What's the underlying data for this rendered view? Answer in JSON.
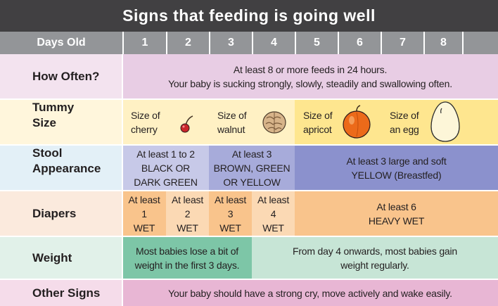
{
  "title": "Signs that feeding is going well",
  "header": {
    "label": "Days Old",
    "days": [
      "1",
      "2",
      "3",
      "4",
      "5",
      "6",
      "7",
      "8"
    ]
  },
  "rows": {
    "how_often": {
      "label": "How Often?",
      "line1": "At least 8 or more feeds in 24 hours.",
      "line2": "Your baby is sucking strongly, slowly, steadily and swallowing often."
    },
    "tummy": {
      "label1": "Tummy",
      "label2": "Size",
      "items": [
        {
          "l1": "Size of",
          "l2": "cherry",
          "icon": "cherry-icon"
        },
        {
          "l1": "Size of",
          "l2": "walnut",
          "icon": "walnut-icon"
        },
        {
          "l1": "Size of",
          "l2": "apricot",
          "icon": "apricot-icon"
        },
        {
          "l1": "Size of",
          "l2": "an egg",
          "icon": "egg-icon"
        }
      ]
    },
    "stool": {
      "label1": "Stool",
      "label2": "Appearance",
      "c1": [
        "At least 1 to 2",
        "BLACK OR",
        "DARK GREEN"
      ],
      "c2": [
        "At least 3",
        "BROWN, GREEN",
        "OR YELLOW"
      ],
      "c3": [
        "At least 3 large and soft",
        "YELLOW (Breastfed)"
      ]
    },
    "diapers": {
      "label": "Diapers",
      "days": [
        [
          "At least",
          "1",
          "WET"
        ],
        [
          "At least",
          "2",
          "WET"
        ],
        [
          "At least",
          "3",
          "WET"
        ],
        [
          "At least",
          "4",
          "WET"
        ]
      ],
      "rest": [
        "At least 6",
        "HEAVY WET"
      ]
    },
    "weight": {
      "label": "Weight",
      "c1": [
        "Most babies lose a bit of",
        "weight in the first 3 days."
      ],
      "c2": [
        "From day 4 onwards, most babies gain",
        "weight regularly."
      ]
    },
    "other": {
      "label": "Other Signs",
      "text": "Your baby should have a strong cry, move actively and wake easily."
    }
  },
  "colors": {
    "title_bg": "#414042",
    "header_bg": "#939598",
    "how_often": "#e8cde4",
    "tummy_1": "#fff1c4",
    "tummy_2": "#fee68f",
    "stool_1": "#c7c9e8",
    "stool_2": "#a7abda",
    "stool_3": "#8b91cd",
    "diapers_1": "#fbd9b4",
    "diapers_2": "#f9c48c",
    "weight_1": "#7dc6a7",
    "weight_2": "#c7e5d6",
    "other": "#e8b6d4"
  }
}
